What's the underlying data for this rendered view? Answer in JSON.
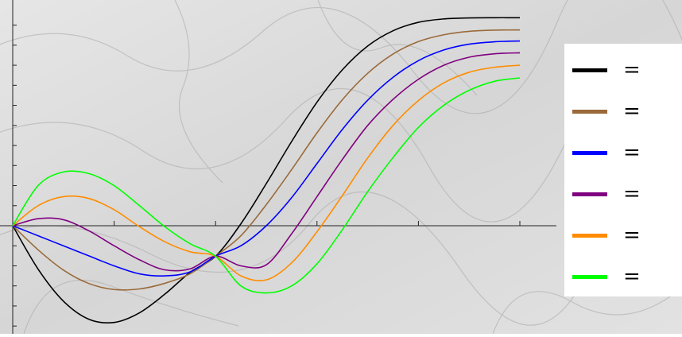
{
  "chart_data": {
    "type": "line",
    "title": "",
    "xlabel": "",
    "ylabel": "",
    "xlim": [
      0,
      1
    ],
    "ylim": [
      -0.5,
      1.05
    ],
    "x_tick_count": 5,
    "y_tick_spacing": 0.1,
    "grid": false,
    "legend_position": "right",
    "series": [
      {
        "color": "#000000",
        "legend_symbol": "=",
        "legend_label": "",
        "x": [
          0,
          0.05,
          0.1,
          0.15,
          0.2,
          0.25,
          0.3,
          0.35,
          0.4,
          0.45,
          0.5,
          0.55,
          0.6,
          0.65,
          0.7,
          0.75,
          0.8,
          0.85,
          0.9,
          0.95,
          1.0
        ],
        "y": [
          0,
          -0.216,
          -0.376,
          -0.466,
          -0.482,
          -0.434,
          -0.341,
          -0.232,
          -0.152,
          0.01,
          0.21,
          0.42,
          0.616,
          0.777,
          0.896,
          0.972,
          1.014,
          1.031,
          1.036,
          1.037,
          1.037
        ]
      },
      {
        "color": "#9a6a3a",
        "legend_symbol": "=",
        "legend_label": "",
        "x": [
          0,
          0.05,
          0.1,
          0.15,
          0.2,
          0.25,
          0.3,
          0.35,
          0.4,
          0.45,
          0.5,
          0.55,
          0.6,
          0.65,
          0.7,
          0.75,
          0.8,
          0.85,
          0.9,
          0.95,
          1.0
        ],
        "y": [
          0,
          -0.12,
          -0.221,
          -0.288,
          -0.318,
          -0.315,
          -0.287,
          -0.239,
          -0.152,
          -0.05,
          0.105,
          0.28,
          0.463,
          0.628,
          0.76,
          0.856,
          0.918,
          0.952,
          0.969,
          0.975,
          0.976
        ]
      },
      {
        "color": "#0000ff",
        "legend_symbol": "=",
        "legend_label": "",
        "x": [
          0,
          0.05,
          0.1,
          0.15,
          0.2,
          0.25,
          0.3,
          0.35,
          0.4,
          0.45,
          0.5,
          0.55,
          0.6,
          0.65,
          0.7,
          0.75,
          0.8,
          0.85,
          0.9,
          0.95,
          1.0
        ],
        "y": [
          0,
          -0.05,
          -0.1,
          -0.15,
          -0.2,
          -0.24,
          -0.25,
          -0.23,
          -0.152,
          -0.1,
          0.0,
          0.14,
          0.31,
          0.48,
          0.626,
          0.74,
          0.823,
          0.876,
          0.905,
          0.917,
          0.921
        ]
      },
      {
        "color": "#800080",
        "legend_symbol": "=",
        "legend_label": "",
        "x": [
          0,
          0.05,
          0.1,
          0.15,
          0.2,
          0.25,
          0.3,
          0.35,
          0.4,
          0.45,
          0.5,
          0.55,
          0.6,
          0.65,
          0.7,
          0.75,
          0.8,
          0.85,
          0.9,
          0.95,
          1.0
        ],
        "y": [
          0,
          0.035,
          0.03,
          -0.025,
          -0.1,
          -0.17,
          -0.22,
          -0.215,
          -0.152,
          -0.2,
          -0.195,
          -0.04,
          0.145,
          0.33,
          0.5,
          0.63,
          0.73,
          0.8,
          0.84,
          0.857,
          0.862
        ]
      },
      {
        "color": "#ff8c00",
        "legend_symbol": "=",
        "legend_label": "",
        "x": [
          0,
          0.05,
          0.1,
          0.15,
          0.2,
          0.25,
          0.3,
          0.35,
          0.4,
          0.45,
          0.5,
          0.55,
          0.6,
          0.65,
          0.7,
          0.75,
          0.8,
          0.85,
          0.9,
          0.95,
          1.0
        ],
        "y": [
          0,
          0.1,
          0.145,
          0.136,
          0.08,
          -0.005,
          -0.08,
          -0.13,
          -0.152,
          -0.25,
          -0.27,
          -0.185,
          -0.03,
          0.15,
          0.338,
          0.5,
          0.624,
          0.712,
          0.765,
          0.79,
          0.8
        ]
      },
      {
        "color": "#00ff00",
        "legend_symbol": "=",
        "legend_label": "",
        "x": [
          0,
          0.05,
          0.1,
          0.15,
          0.2,
          0.25,
          0.3,
          0.35,
          0.4,
          0.45,
          0.5,
          0.55,
          0.6,
          0.65,
          0.7,
          0.75,
          0.8,
          0.85,
          0.9,
          0.95,
          1.0
        ],
        "y": [
          0,
          0.2,
          0.268,
          0.26,
          0.2,
          0.1,
          -0.005,
          -0.09,
          -0.152,
          -0.3,
          -0.335,
          -0.3,
          -0.19,
          -0.02,
          0.17,
          0.34,
          0.49,
          0.6,
          0.675,
          0.72,
          0.737
        ]
      }
    ]
  }
}
